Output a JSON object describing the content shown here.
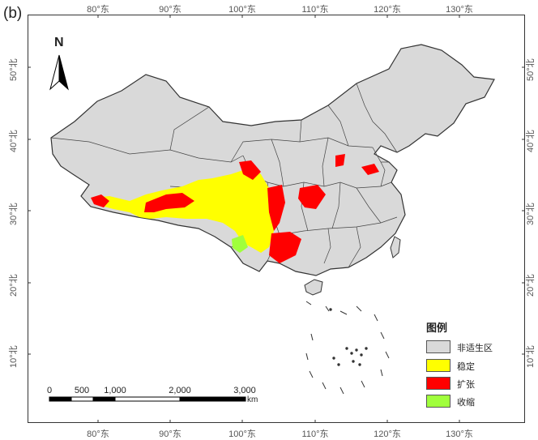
{
  "panel_label": "(b)",
  "longitude_ticks": [
    "80°东",
    "90°东",
    "100°东",
    "110°东",
    "120°东",
    "130°东"
  ],
  "latitude_ticks": [
    "50°北",
    "40°北",
    "30°北",
    "20°北",
    "10°北"
  ],
  "north_arrow": {
    "label": "N",
    "icon": "north-arrow-icon"
  },
  "scale_bar": {
    "labels": [
      "0",
      "500",
      "1,000",
      "2,000",
      "3,000"
    ],
    "unit": "km"
  },
  "legend": {
    "title": "图例",
    "items": [
      {
        "label": "非适生区",
        "color": "#d9d9d9"
      },
      {
        "label": "稳定",
        "color": "#ffff00"
      },
      {
        "label": "扩张",
        "color": "#ff0000"
      },
      {
        "label": "收缩",
        "color": "#a0ff3c"
      }
    ]
  }
}
